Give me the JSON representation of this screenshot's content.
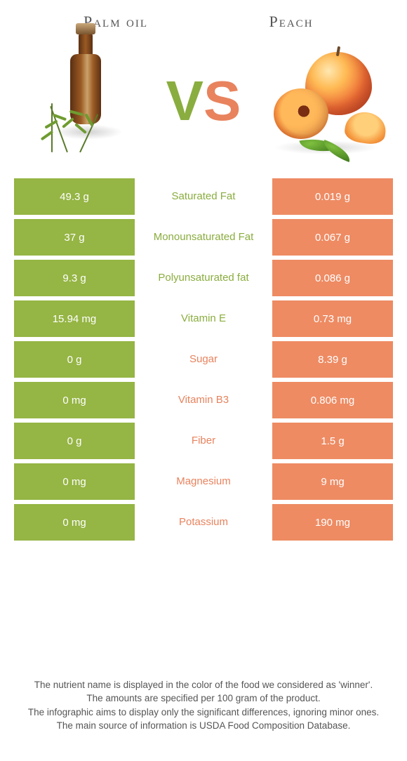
{
  "colors": {
    "left": "#95b544",
    "right": "#ee8b63",
    "left_text": "#8aad3f",
    "right_text": "#e8835e"
  },
  "header": {
    "left": "Palm oil",
    "right": "Peach"
  },
  "vs": {
    "v": "V",
    "s": "S"
  },
  "rows": [
    {
      "label": "Saturated Fat",
      "left": "49.3 g",
      "right": "0.019 g",
      "winner": "left"
    },
    {
      "label": "Monounsaturated Fat",
      "left": "37 g",
      "right": "0.067 g",
      "winner": "left"
    },
    {
      "label": "Polyunsaturated fat",
      "left": "9.3 g",
      "right": "0.086 g",
      "winner": "left"
    },
    {
      "label": "Vitamin E",
      "left": "15.94 mg",
      "right": "0.73 mg",
      "winner": "left"
    },
    {
      "label": "Sugar",
      "left": "0 g",
      "right": "8.39 g",
      "winner": "right"
    },
    {
      "label": "Vitamin B3",
      "left": "0 mg",
      "right": "0.806 mg",
      "winner": "right"
    },
    {
      "label": "Fiber",
      "left": "0 g",
      "right": "1.5 g",
      "winner": "right"
    },
    {
      "label": "Magnesium",
      "left": "0 mg",
      "right": "9 mg",
      "winner": "right"
    },
    {
      "label": "Potassium",
      "left": "0 mg",
      "right": "190 mg",
      "winner": "right"
    }
  ],
  "footer": {
    "l1": "The nutrient name is displayed in the color of the food we considered as 'winner'.",
    "l2": "The amounts are specified per 100 gram of the product.",
    "l3": "The infographic aims to display only the significant differences, ignoring minor ones.",
    "l4": "The main source of information is USDA Food Composition Database."
  }
}
